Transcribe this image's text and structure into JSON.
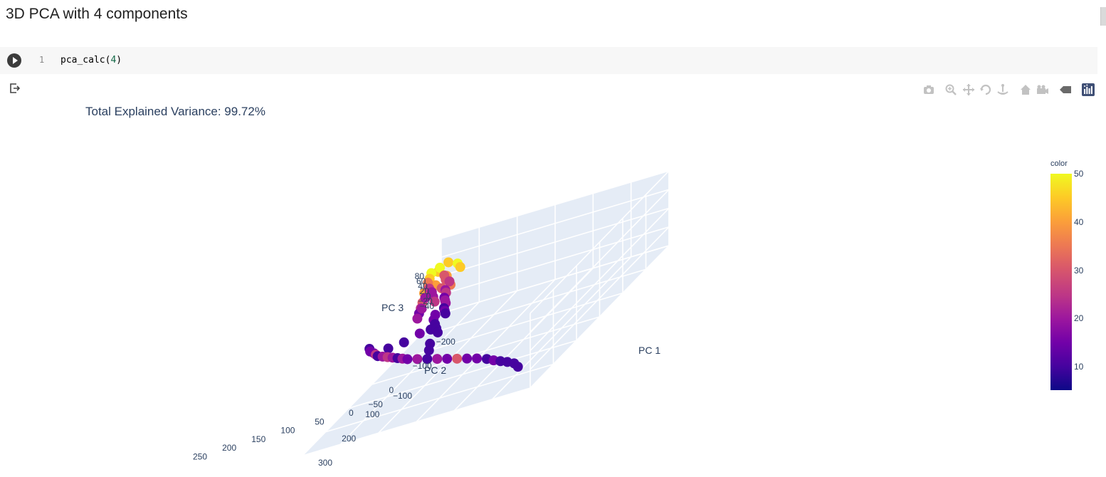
{
  "notebook": {
    "heading": "3D PCA with 4 components",
    "cell": {
      "line_number": "1",
      "code_function": "pca_calc(",
      "code_argument": "4",
      "code_close": ")"
    }
  },
  "icons": {
    "run": "play-circle-icon",
    "output": "output-redirect-icon",
    "modebar": [
      "camera-icon",
      "zoom-icon",
      "pan-icon",
      "orbit-rotation-icon",
      "turntable-rotation-icon",
      "home-icon",
      "camera-view-icon",
      "hover-tag-icon",
      "plotly-logo-icon"
    ]
  },
  "colors": {
    "accent": "#2a3f5f",
    "scene_background": "#e5ecf6",
    "colorscale": [
      "#0d0887",
      "#46039f",
      "#7201a8",
      "#9c179e",
      "#bd3786",
      "#d8576b",
      "#ed7953",
      "#fb9f3a",
      "#fdca26",
      "#f0f921"
    ]
  },
  "chart_data": {
    "type": "scatter",
    "title": "Total Explained Variance: 99.72%",
    "xlabel": "PC 1",
    "ylabel": "PC 2",
    "zlabel": "PC 3",
    "x_ticks": [
      "−200",
      "−100",
      "0",
      "100",
      "200",
      "300"
    ],
    "y_ticks": [
      "−100",
      "−50",
      "0",
      "50",
      "100",
      "150",
      "200",
      "250"
    ],
    "z_ticks": [
      "80",
      "60",
      "40",
      "20",
      "0",
      "−20",
      "−40"
    ],
    "colorbar": {
      "title": "color",
      "range": [
        5,
        50
      ],
      "ticks": [
        "50",
        "40",
        "30",
        "20",
        "10"
      ]
    },
    "points": [
      {
        "x": 330,
        "y": 240,
        "z": 0,
        "c": 8
      },
      {
        "x": 320,
        "y": 230,
        "z": 5,
        "c": 10
      },
      {
        "x": 310,
        "y": 215,
        "z": 8,
        "c": 12
      },
      {
        "x": 300,
        "y": 200,
        "z": 10,
        "c": 9
      },
      {
        "x": 290,
        "y": 185,
        "z": 12,
        "c": 14
      },
      {
        "x": 280,
        "y": 170,
        "z": 15,
        "c": 11
      },
      {
        "x": 270,
        "y": 150,
        "z": 18,
        "c": 16
      },
      {
        "x": 260,
        "y": 130,
        "z": 20,
        "c": 13
      },
      {
        "x": 250,
        "y": 110,
        "z": 22,
        "c": 28
      },
      {
        "x": 240,
        "y": 90,
        "z": 24,
        "c": 15
      },
      {
        "x": 230,
        "y": 70,
        "z": 26,
        "c": 18
      },
      {
        "x": 220,
        "y": 50,
        "z": 28,
        "c": 12
      },
      {
        "x": 210,
        "y": 30,
        "z": 30,
        "c": 20
      },
      {
        "x": 200,
        "y": 10,
        "z": 32,
        "c": 17
      },
      {
        "x": 195,
        "y": 0,
        "z": 34,
        "c": 22
      },
      {
        "x": 190,
        "y": -10,
        "z": 36,
        "c": 8
      },
      {
        "x": 185,
        "y": -20,
        "z": 38,
        "c": 19
      },
      {
        "x": 180,
        "y": -30,
        "z": 40,
        "c": 24
      },
      {
        "x": 175,
        "y": -40,
        "z": 42,
        "c": 21
      },
      {
        "x": 170,
        "y": -50,
        "z": 44,
        "c": 9
      },
      {
        "x": 165,
        "y": -55,
        "z": 46,
        "c": 26
      },
      {
        "x": 160,
        "y": -60,
        "z": 48,
        "c": 14
      },
      {
        "x": 150,
        "y": -70,
        "z": 50,
        "c": 16
      },
      {
        "x": 140,
        "y": -75,
        "z": 52,
        "c": 10
      },
      {
        "x": 100,
        "y": -60,
        "z": 30,
        "c": 12
      },
      {
        "x": 60,
        "y": -50,
        "z": 20,
        "c": 10
      },
      {
        "x": 20,
        "y": -40,
        "z": 15,
        "c": 14
      },
      {
        "x": 0,
        "y": -30,
        "z": 10,
        "c": 11
      },
      {
        "x": -40,
        "y": -60,
        "z": 40,
        "c": 18
      },
      {
        "x": -80,
        "y": -70,
        "z": 45,
        "c": 20
      },
      {
        "x": -120,
        "y": -80,
        "z": 50,
        "c": 35
      },
      {
        "x": -150,
        "y": -90,
        "z": 55,
        "c": 44
      },
      {
        "x": -170,
        "y": -95,
        "z": 58,
        "c": 49
      },
      {
        "x": -180,
        "y": -85,
        "z": 60,
        "c": 50
      },
      {
        "x": -190,
        "y": -75,
        "z": 62,
        "c": 46
      },
      {
        "x": -160,
        "y": -70,
        "z": 50,
        "c": 32
      },
      {
        "x": -140,
        "y": -60,
        "z": 48,
        "c": 28
      },
      {
        "x": -130,
        "y": -50,
        "z": 46,
        "c": 24
      },
      {
        "x": -110,
        "y": -55,
        "z": 44,
        "c": 30
      },
      {
        "x": -100,
        "y": -45,
        "z": 42,
        "c": 22
      },
      {
        "x": -90,
        "y": -40,
        "z": 40,
        "c": 26
      },
      {
        "x": -70,
        "y": -35,
        "z": 38,
        "c": 16
      },
      {
        "x": -60,
        "y": -30,
        "z": 36,
        "c": 20
      },
      {
        "x": -50,
        "y": -25,
        "z": 34,
        "c": 18
      },
      {
        "x": -30,
        "y": -20,
        "z": 32,
        "c": 12
      },
      {
        "x": -20,
        "y": -15,
        "z": 30,
        "c": 14
      },
      {
        "x": -10,
        "y": -10,
        "z": 28,
        "c": 10
      },
      {
        "x": -150,
        "y": -80,
        "z": 40,
        "c": 38
      },
      {
        "x": -170,
        "y": -70,
        "z": 45,
        "c": 42
      },
      {
        "x": -185,
        "y": -90,
        "z": 52,
        "c": 47
      },
      {
        "x": -130,
        "y": -85,
        "z": 55,
        "c": 33
      },
      {
        "x": -110,
        "y": -75,
        "z": 50,
        "c": 27
      },
      {
        "x": -95,
        "y": -65,
        "z": 47,
        "c": 21
      },
      {
        "x": -75,
        "y": -55,
        "z": 44,
        "c": 19
      },
      {
        "x": -55,
        "y": -45,
        "z": 41,
        "c": 23
      },
      {
        "x": -45,
        "y": -40,
        "z": 20,
        "c": 13
      },
      {
        "x": -25,
        "y": -35,
        "z": 18,
        "c": 15
      },
      {
        "x": -5,
        "y": -25,
        "z": 16,
        "c": 9
      },
      {
        "x": 15,
        "y": -15,
        "z": 14,
        "c": 11
      },
      {
        "x": 35,
        "y": -5,
        "z": 12,
        "c": 8
      },
      {
        "x": 80,
        "y": 0,
        "z": 10,
        "c": 12
      },
      {
        "x": 110,
        "y": 10,
        "z": 8,
        "c": 10
      },
      {
        "x": -160,
        "y": -60,
        "z": 30,
        "c": 36
      },
      {
        "x": -140,
        "y": -95,
        "z": 35,
        "c": 40
      },
      {
        "x": -120,
        "y": -90,
        "z": 25,
        "c": 29
      },
      {
        "x": -100,
        "y": -85,
        "z": 22,
        "c": 25
      },
      {
        "x": -80,
        "y": -80,
        "z": 20,
        "c": 17
      },
      {
        "x": -60,
        "y": -75,
        "z": 18,
        "c": 22
      },
      {
        "x": -190,
        "y": -60,
        "z": 55,
        "c": 48
      },
      {
        "x": -175,
        "y": -50,
        "z": 52,
        "c": 45
      }
    ]
  }
}
